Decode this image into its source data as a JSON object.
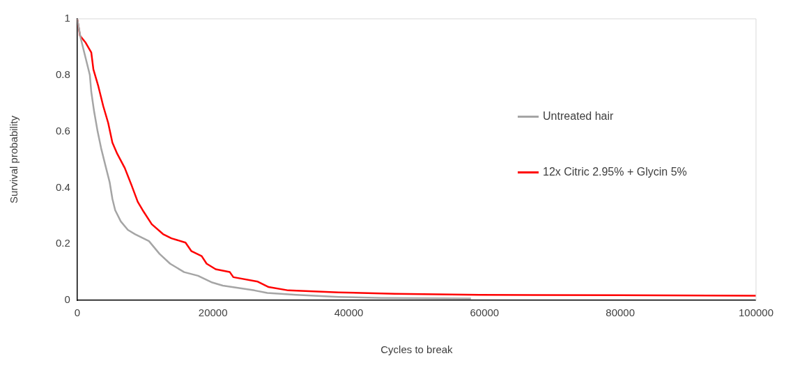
{
  "chart_data": {
    "type": "line",
    "xlabel": "Cycles to break",
    "ylabel": "Survival probability",
    "xlim": [
      0,
      100000
    ],
    "xticks": [
      0,
      20000,
      40000,
      60000,
      80000,
      100000
    ],
    "ylim": [
      0,
      1
    ],
    "yticks": [
      0,
      0.2,
      0.4,
      0.6,
      0.8,
      1
    ],
    "grid": false,
    "legend": "right",
    "marker": "none",
    "line_style": "solid",
    "series": [
      {
        "name": "Untreated hair",
        "color": "#a5a5a5",
        "x": [
          0,
          520,
          1240,
          1860,
          2070,
          2490,
          3000,
          3520,
          4140,
          4770,
          5180,
          5590,
          6420,
          7460,
          8500,
          10570,
          12120,
          13680,
          15750,
          17800,
          19890,
          21440,
          26100,
          28000,
          32300,
          38500,
          44800,
          58000
        ],
        "values": [
          1,
          0.93,
          0.86,
          0.8,
          0.74,
          0.67,
          0.6,
          0.54,
          0.48,
          0.42,
          0.36,
          0.32,
          0.28,
          0.25,
          0.235,
          0.21,
          0.165,
          0.13,
          0.1,
          0.087,
          0.063,
          0.052,
          0.035,
          0.026,
          0.019,
          0.012,
          0.008,
          0.006
        ]
      },
      {
        "name": "12x Citric 2.95% + Glycin 5%",
        "color": "#ff0000",
        "x": [
          0,
          410,
          1240,
          2070,
          2380,
          3110,
          3830,
          4560,
          5180,
          5900,
          7000,
          7980,
          8910,
          9640,
          10980,
          12640,
          13880,
          15950,
          16800,
          18330,
          19060,
          20400,
          22480,
          23000,
          26600,
          28200,
          31100,
          38500,
          46800,
          59300,
          80000,
          100000
        ],
        "values": [
          1,
          0.94,
          0.915,
          0.88,
          0.82,
          0.76,
          0.69,
          0.63,
          0.56,
          0.52,
          0.47,
          0.41,
          0.35,
          0.32,
          0.27,
          0.235,
          0.22,
          0.205,
          0.175,
          0.157,
          0.13,
          0.11,
          0.1,
          0.082,
          0.066,
          0.047,
          0.035,
          0.028,
          0.023,
          0.019,
          0.018,
          0.016
        ]
      }
    ]
  }
}
